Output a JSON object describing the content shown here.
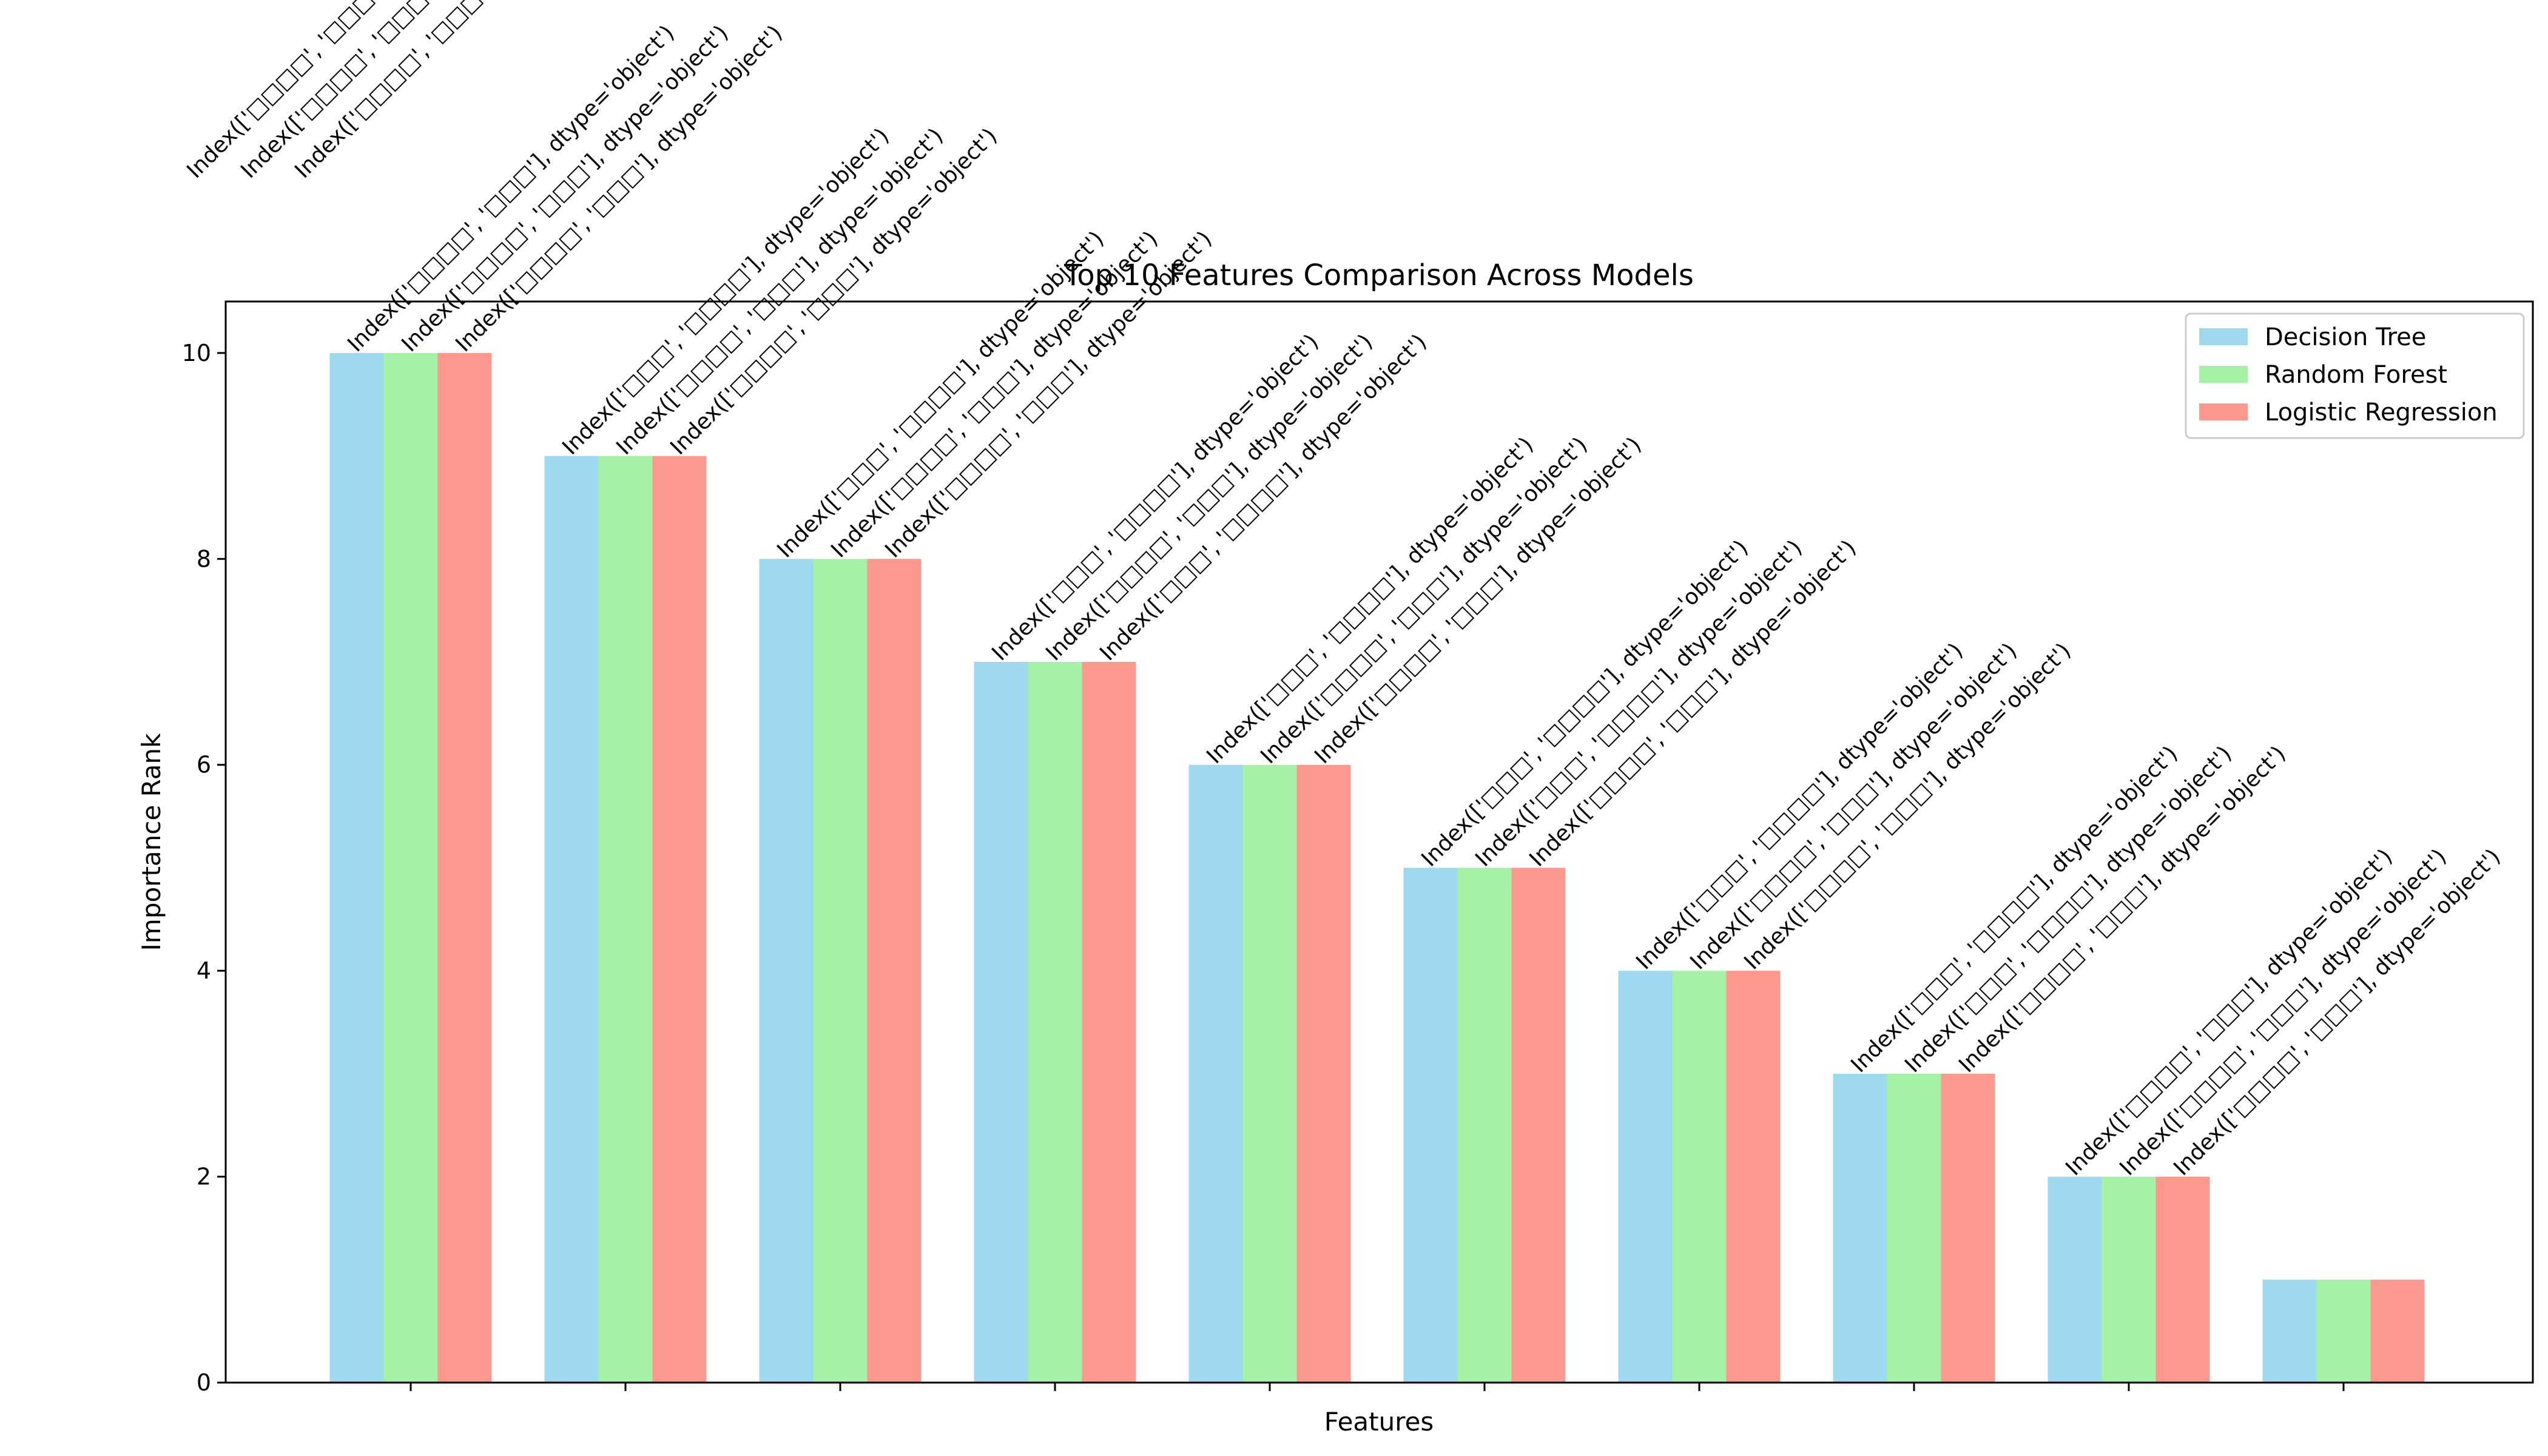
{
  "chart_data": {
    "type": "bar",
    "title": "Top 10 Features Comparison Across Models",
    "xlabel": "Features",
    "ylabel": "Importance Rank",
    "ylim": [
      0,
      10.5
    ],
    "yticks": [
      "0",
      "2",
      "4",
      "6",
      "8",
      "10"
    ],
    "legend_position": "top-right",
    "grid": false,
    "categories": [
      "",
      "",
      "",
      "",
      "",
      "",
      "",
      "",
      "",
      ""
    ],
    "series": [
      {
        "name": "Decision Tree",
        "color": "#87ceeb",
        "values": [
          10,
          9,
          8,
          7,
          6,
          5,
          4,
          3,
          2,
          1
        ],
        "labels": [
          "Index(['□□□□', '□□□'], dtype='object')",
          "Index(['□□□', '□□□□'], dtype='object')",
          "Index(['□□□', '□□□□'], dtype='object')",
          "Index(['□□□', '□□□□'], dtype='object')",
          "Index(['□□□', '□□□□'], dtype='object')",
          "Index(['□□□', '□□□□'], dtype='object')",
          "Index(['□□□', '□□□□'], dtype='object')",
          "Index(['□□□', '□□□□'], dtype='object')",
          "Index(['□□□□', '□□□'], dtype='object')",
          ""
        ]
      },
      {
        "name": "Random Forest",
        "color": "#90ee90",
        "values": [
          10,
          9,
          8,
          7,
          6,
          5,
          4,
          3,
          2,
          1
        ],
        "labels": [
          "Index(['□□□□', '□□□'], dtype='object')",
          "Index(['□□□□', '□□□'], dtype='object')",
          "Index(['□□□□', '□□□'], dtype='object')",
          "Index(['□□□□', '□□□'], dtype='object')",
          "Index(['□□□□', '□□□'], dtype='object')",
          "Index(['□□□', '□□□□'], dtype='object')",
          "Index(['□□□□', '□□□'], dtype='object')",
          "Index(['□□□', '□□□□'], dtype='object')",
          "Index(['□□□□', '□□□'], dtype='object')",
          ""
        ]
      },
      {
        "name": "Logistic Regression",
        "color": "#fa8072",
        "values": [
          10,
          9,
          8,
          7,
          6,
          5,
          4,
          3,
          2,
          1
        ],
        "labels": [
          "Index(['□□□□', '□□□'], dtype='object')",
          "Index(['□□□□', '□□□'], dtype='object')",
          "Index(['□□□□', '□□□'], dtype='object')",
          "Index(['□□□', '□□□□'], dtype='object')",
          "Index(['□□□□', '□□□'], dtype='object')",
          "Index(['□□□□', '□□□'], dtype='object')",
          "Index(['□□□□', '□□□'], dtype='object')",
          "Index(['□□□□', '□□□'], dtype='object')",
          "Index(['□□□□', '□□□'], dtype='object')",
          ""
        ]
      }
    ],
    "overflow_labels": [
      "Index(['□□□□', '□□□'], dtype='object')",
      "Index(['□□□□', '□□□'], dtype='object')",
      "Index(['□□□□', '□□□'], dtype='object')"
    ]
  }
}
